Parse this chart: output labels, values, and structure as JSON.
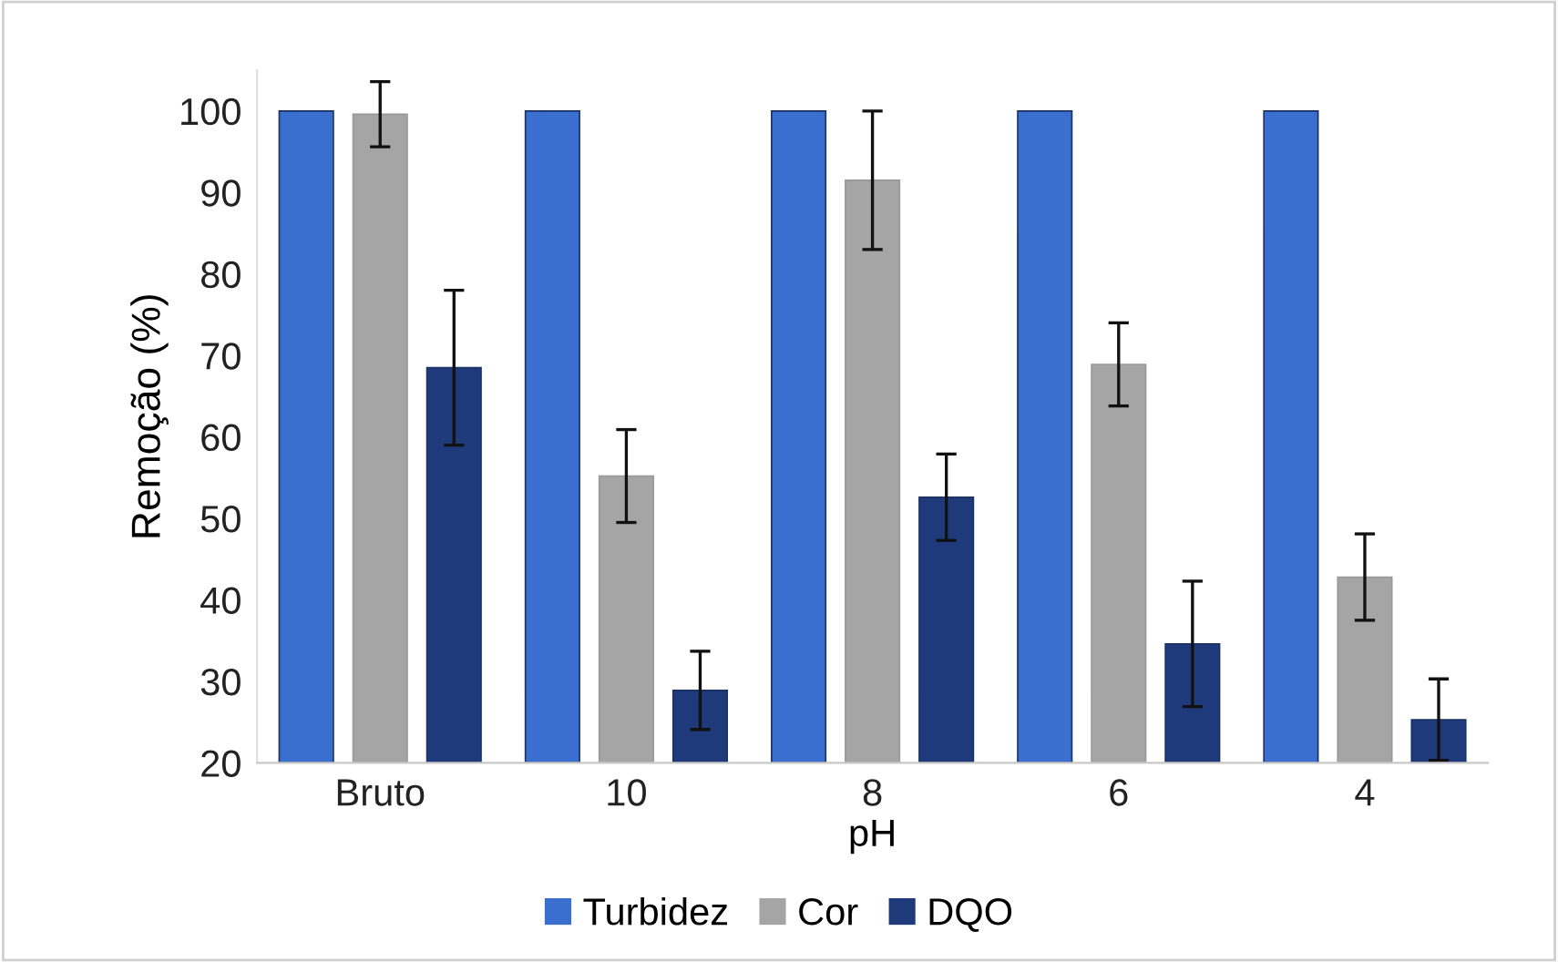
{
  "chart_data": {
    "type": "bar",
    "xlabel": "pH",
    "ylabel": "Remoção (%)",
    "categories": [
      "Bruto",
      "10",
      "8",
      "6",
      "4"
    ],
    "series": [
      {
        "name": "Turbidez",
        "color": "#3a6fcf",
        "values": [
          100,
          100,
          100,
          100,
          100
        ]
      },
      {
        "name": "Cor",
        "color": "#a5a5a5",
        "values": [
          99.6,
          55.2,
          91.5,
          68.9,
          42.8
        ],
        "errors": [
          4,
          5.7,
          8.5,
          5.1,
          5.3
        ]
      },
      {
        "name": "DQO",
        "color": "#1f3a7a",
        "values": [
          68.5,
          28.9,
          52.6,
          34.6,
          25.3
        ],
        "errors": [
          9.5,
          4.8,
          5.3,
          7.7,
          5
        ]
      }
    ],
    "ylim": [
      20,
      105
    ],
    "yticks": [
      20,
      30,
      40,
      50,
      60,
      70,
      80,
      90,
      100
    ],
    "grid": false,
    "legend": "bottom"
  }
}
